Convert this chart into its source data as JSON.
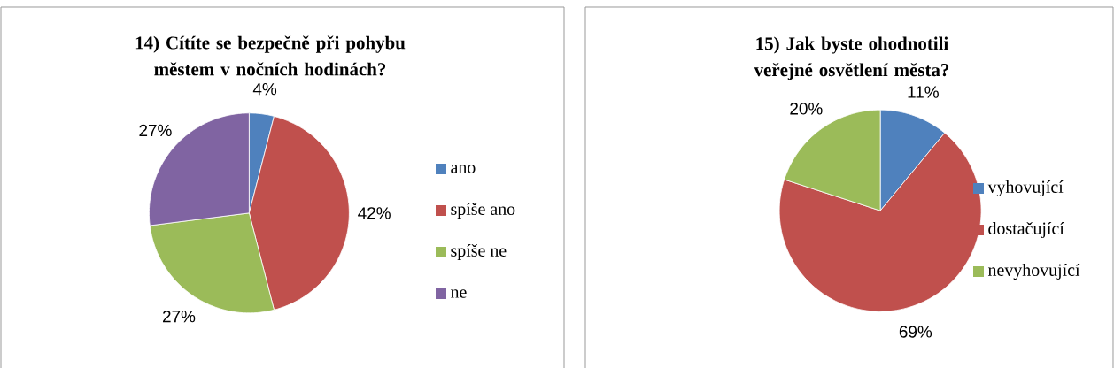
{
  "chart_data": [
    {
      "type": "pie",
      "title": "14) Cítíte se bezpečně při pohybu městem v nočních hodinách?",
      "categories": [
        "ano",
        "spíše ano",
        "spíše ne",
        "ne"
      ],
      "values": [
        4,
        42,
        27,
        27
      ],
      "colors": [
        "#4f81bd",
        "#c0504d",
        "#9bbb59",
        "#8064a2"
      ],
      "value_labels": [
        "4%",
        "42%",
        "27%",
        "27%"
      ],
      "legend": "right"
    },
    {
      "type": "pie",
      "title": "15) Jak byste ohodnotili veřejné osvětlení města?",
      "categories": [
        "vyhovující",
        "dostačující",
        "nevyhovující"
      ],
      "values": [
        11,
        69,
        20
      ],
      "colors": [
        "#4f81bd",
        "#c0504d",
        "#9bbb59"
      ],
      "value_labels": [
        "11%",
        "69%",
        "20%"
      ],
      "legend": "right"
    }
  ]
}
